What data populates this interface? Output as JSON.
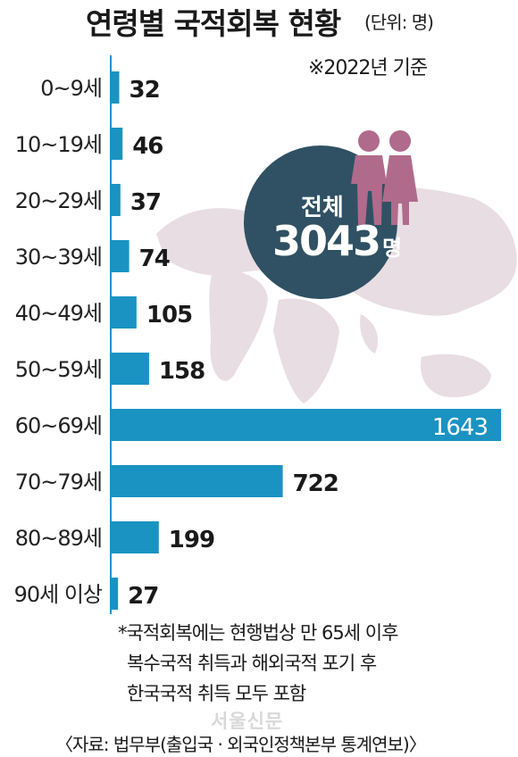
{
  "header": {
    "title": "연령별 국적회복 현황",
    "unit": "(단위: 명)",
    "basis": "※2022년 기준"
  },
  "total": {
    "label": "전체",
    "value": "3043",
    "unit": "명"
  },
  "chart_data": {
    "type": "bar",
    "orientation": "horizontal",
    "title": "연령별 국적회복 현황",
    "unit": "명",
    "categories": [
      "0~9세",
      "10~19세",
      "20~29세",
      "30~39세",
      "40~49세",
      "50~59세",
      "60~69세",
      "70~79세",
      "80~89세",
      "90세 이상"
    ],
    "values": [
      32,
      46,
      37,
      74,
      105,
      158,
      1643,
      722,
      199,
      27
    ],
    "value_labels": [
      "32",
      "46",
      "37",
      "74",
      "105",
      "158",
      "1643",
      "722",
      "199",
      "27"
    ],
    "xlim": [
      0,
      1643
    ],
    "grid": false,
    "bar_color": "#1a93c2"
  },
  "notes": [
    "*국적회복에는 현행법상 만 65세 이후",
    "복수국적 취득과 해외국적 포기 후",
    "한국국적 취득 모두 포함"
  ],
  "source": "〈자료: 법무부(출입국 · 외국인정책본부 통계연보)〉",
  "watermark": "서울신문",
  "colors": {
    "bar": "#1a93c2",
    "circle": "#2f5163",
    "map": "#e8dde2",
    "figures": "#b06a8c",
    "axis": "#1a93c2"
  }
}
